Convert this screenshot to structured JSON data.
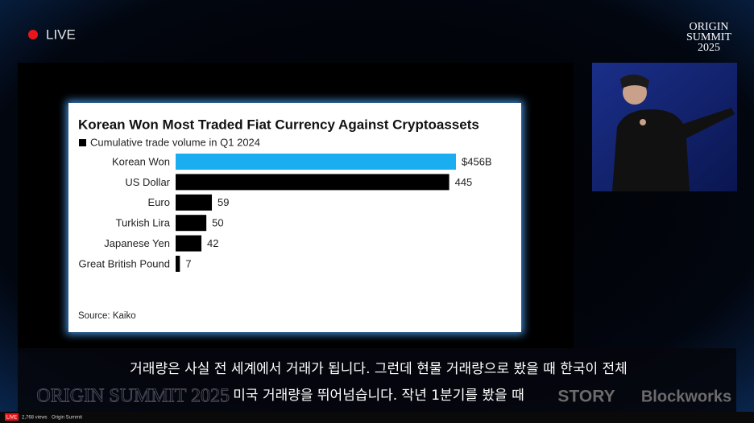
{
  "stream": {
    "live_label": "LIVE",
    "event_logo": [
      "ORIGIN",
      "SUMMIT",
      "2025"
    ]
  },
  "chart_data": {
    "type": "bar",
    "orientation": "horizontal",
    "title": "Korean Won Most Traded Fiat Currency Against Cryptoassets",
    "subtitle": "Cumulative trade volume in Q1 2024",
    "source": "Source: Kaiko",
    "categories": [
      "Korean Won",
      "US Dollar",
      "Euro",
      "Turkish Lira",
      "Japanese Yen",
      "Great British Pound"
    ],
    "values": [
      456,
      445,
      59,
      50,
      42,
      7
    ],
    "value_labels": [
      "$456B",
      "445",
      "59",
      "50",
      "42",
      "7"
    ],
    "colors": [
      "#1aaef0",
      "#000000",
      "#000000",
      "#000000",
      "#000000",
      "#000000"
    ]
  },
  "captions": [
    "거래량은 사실 전 세계에서 거래가 됩니다. 그런데 현물 거래량으로 봤을 때 한국이 전체",
    "미국 거래량을 뛰어넘습니다. 작년 1분기를 봤을 때"
  ],
  "banner": {
    "event": "ORIGIN SUMMIT 2025",
    "sponsors": [
      "STORY",
      "Blockworks"
    ]
  },
  "status_bar": {
    "live_badge": "LIVE",
    "views": "2,768 views",
    "channel": "Origin Summit"
  }
}
